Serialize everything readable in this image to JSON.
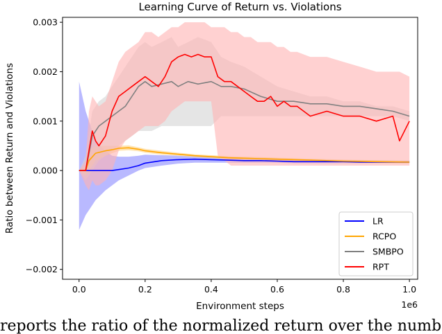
{
  "chart_data": {
    "type": "line",
    "title": "Learning Curve of Return vs. Violations",
    "xlabel": "Environment steps",
    "ylabel": "Ratio between Return and Violations",
    "x_offset_label": "1e6",
    "xlim": [
      -0.05,
      1.025
    ],
    "ylim": [
      -0.0022,
      0.0031
    ],
    "xticks": [
      0.0,
      0.2,
      0.4,
      0.6,
      0.8,
      1.0
    ],
    "xtick_labels": [
      "0.0",
      "0.2",
      "0.4",
      "0.6",
      "0.8",
      "1.0"
    ],
    "yticks": [
      -0.002,
      -0.001,
      0.0,
      0.001,
      0.002,
      0.003
    ],
    "ytick_labels": [
      "−0.002",
      "−0.001",
      "0.000",
      "0.001",
      "0.002",
      "0.003"
    ],
    "legend_position": "bottom-right",
    "series": [
      {
        "name": "LR",
        "color": "#0000ff",
        "band_color": "#8a8aff",
        "x": [
          0.0,
          0.02,
          0.05,
          0.08,
          0.1,
          0.12,
          0.15,
          0.18,
          0.2,
          0.25,
          0.3,
          0.35,
          0.4,
          0.45,
          0.5,
          0.55,
          0.6,
          0.65,
          0.7,
          0.75,
          0.8,
          0.85,
          0.9,
          0.95,
          1.0
        ],
        "y": [
          0.0,
          0.0,
          0.0,
          0.0,
          0.0,
          2e-05,
          5e-05,
          0.0001,
          0.00015,
          0.0002,
          0.00022,
          0.00023,
          0.00022,
          0.00021,
          0.0002,
          0.0002,
          0.00019,
          0.00018,
          0.00018,
          0.00018,
          0.00018,
          0.00017,
          0.00017,
          0.00017,
          0.00017
        ],
        "lower": [
          -0.0012,
          -0.0009,
          -0.0006,
          -0.0004,
          -0.0003,
          -0.0002,
          -0.0001,
          0.0,
          5e-05,
          0.0001,
          0.00014,
          0.00016,
          0.00016,
          0.00016,
          0.00016,
          0.00016,
          0.00016,
          0.00015,
          0.00015,
          0.00015,
          0.00015,
          0.00015,
          0.00015,
          0.00015,
          0.00015
        ],
        "upper": [
          0.0018,
          0.0012,
          0.0006,
          0.0004,
          0.0003,
          0.00028,
          0.00028,
          0.0003,
          0.00032,
          0.00031,
          0.0003,
          0.00029,
          0.00028,
          0.00027,
          0.00026,
          0.00025,
          0.00024,
          0.00023,
          0.00022,
          0.00021,
          0.00021,
          0.0002,
          0.0002,
          0.0002,
          0.0002
        ]
      },
      {
        "name": "RCPO",
        "color": "#ffa500",
        "band_color": "#ffd27f",
        "x": [
          0.0,
          0.02,
          0.03,
          0.05,
          0.08,
          0.1,
          0.12,
          0.15,
          0.18,
          0.2,
          0.25,
          0.3,
          0.35,
          0.4,
          0.45,
          0.5,
          0.55,
          0.6,
          0.7,
          0.8,
          0.9,
          1.0
        ],
        "y": [
          0.0,
          0.0,
          0.0002,
          0.00035,
          0.0004,
          0.00042,
          0.00045,
          0.00046,
          0.00043,
          0.0004,
          0.00036,
          0.00033,
          0.0003,
          0.00028,
          0.00026,
          0.00025,
          0.00024,
          0.00023,
          0.00021,
          0.00019,
          0.00018,
          0.00017
        ],
        "lower": [
          0.0,
          -0.0001,
          0.0,
          0.0002,
          0.0003,
          0.00035,
          0.0004,
          0.00041,
          0.00039,
          0.00036,
          0.00032,
          0.0003,
          0.00027,
          0.00025,
          0.00023,
          0.00022,
          0.00021,
          0.0002,
          0.00018,
          0.00016,
          0.00015,
          0.00014
        ],
        "upper": [
          0.0,
          0.0001,
          0.0004,
          0.0005,
          0.0005,
          0.0005,
          0.0005,
          0.00051,
          0.00047,
          0.00044,
          0.0004,
          0.00036,
          0.00033,
          0.00031,
          0.00029,
          0.00028,
          0.00027,
          0.00026,
          0.00024,
          0.00022,
          0.00021,
          0.0002
        ]
      },
      {
        "name": "SMBPO",
        "color": "#808080",
        "band_color": "#d3d3d3",
        "x": [
          0.0,
          0.02,
          0.04,
          0.06,
          0.08,
          0.1,
          0.12,
          0.14,
          0.16,
          0.18,
          0.2,
          0.22,
          0.25,
          0.28,
          0.3,
          0.33,
          0.36,
          0.4,
          0.43,
          0.46,
          0.5,
          0.55,
          0.6,
          0.65,
          0.7,
          0.75,
          0.8,
          0.85,
          0.9,
          0.95,
          1.0
        ],
        "y": [
          0.0,
          0.0,
          0.0007,
          0.0009,
          0.001,
          0.0011,
          0.0012,
          0.0013,
          0.0015,
          0.0017,
          0.0018,
          0.0017,
          0.00175,
          0.0018,
          0.0017,
          0.0018,
          0.00175,
          0.0018,
          0.0017,
          0.0017,
          0.00165,
          0.0015,
          0.0014,
          0.0014,
          0.00135,
          0.00135,
          0.0013,
          0.0013,
          0.00125,
          0.0012,
          0.0011
        ],
        "lower": [
          0.0,
          -0.0002,
          0.0,
          0.0002,
          0.0003,
          0.0004,
          0.0005,
          0.0006,
          0.0007,
          0.0008,
          0.0008,
          0.0008,
          0.0009,
          0.0009,
          0.0009,
          0.0009,
          0.0009,
          0.0009,
          0.0011,
          0.0011,
          0.0011,
          0.0011,
          0.0011,
          0.0011,
          0.0011,
          0.0011,
          0.0011,
          0.0011,
          0.0011,
          0.0011,
          0.001
        ],
        "upper": [
          0.0,
          0.0003,
          0.0012,
          0.0014,
          0.0015,
          0.0017,
          0.0019,
          0.0021,
          0.0023,
          0.0025,
          0.0026,
          0.0025,
          0.0026,
          0.0027,
          0.0025,
          0.0026,
          0.0027,
          0.0026,
          0.0023,
          0.0022,
          0.0021,
          0.0019,
          0.0017,
          0.0016,
          0.0015,
          0.0015,
          0.0014,
          0.0014,
          0.0013,
          0.0013,
          0.0012
        ]
      },
      {
        "name": "RPT",
        "color": "#ff0000",
        "band_color": "#ffb3b3",
        "x": [
          0.0,
          0.02,
          0.03,
          0.04,
          0.05,
          0.06,
          0.08,
          0.1,
          0.12,
          0.14,
          0.16,
          0.18,
          0.2,
          0.22,
          0.24,
          0.26,
          0.28,
          0.3,
          0.32,
          0.34,
          0.36,
          0.38,
          0.4,
          0.42,
          0.44,
          0.46,
          0.48,
          0.5,
          0.52,
          0.54,
          0.56,
          0.58,
          0.6,
          0.62,
          0.64,
          0.66,
          0.7,
          0.75,
          0.8,
          0.85,
          0.9,
          0.95,
          0.97,
          1.0
        ],
        "y": [
          0.0,
          0.0,
          0.0004,
          0.0008,
          0.0006,
          0.0005,
          0.0007,
          0.0012,
          0.0015,
          0.0016,
          0.0017,
          0.0018,
          0.0019,
          0.0018,
          0.0017,
          0.0019,
          0.0022,
          0.0023,
          0.00235,
          0.0023,
          0.00235,
          0.0023,
          0.0023,
          0.0019,
          0.0018,
          0.0018,
          0.0017,
          0.0016,
          0.0015,
          0.0014,
          0.0014,
          0.0015,
          0.0013,
          0.0014,
          0.0013,
          0.0013,
          0.0011,
          0.0012,
          0.0011,
          0.0011,
          0.001,
          0.0011,
          0.0006,
          0.001
        ],
        "lower": [
          0.0,
          -0.0003,
          -0.0004,
          -0.0002,
          -0.0003,
          -0.0003,
          -0.0002,
          0.0,
          0.0004,
          0.0006,
          0.0007,
          0.0008,
          0.0009,
          0.0009,
          0.0009,
          0.001,
          0.0012,
          0.0013,
          0.0014,
          0.0014,
          0.0014,
          0.0014,
          0.0014,
          0.0003,
          0.0002,
          0.0001,
          0.0001,
          0.0001,
          0.0001,
          0.0001,
          0.0001,
          0.0001,
          0.0001,
          0.0001,
          0.0001,
          0.0001,
          0.0001,
          0.0001,
          0.0001,
          0.0001,
          0.0001,
          0.0001,
          0.0001,
          0.0001
        ],
        "upper": [
          0.0,
          0.0002,
          0.0012,
          0.0015,
          0.0014,
          0.0013,
          0.0014,
          0.0018,
          0.0022,
          0.0024,
          0.0025,
          0.0026,
          0.0028,
          0.0028,
          0.0027,
          0.0028,
          0.0029,
          0.0029,
          0.003,
          0.003,
          0.003,
          0.003,
          0.0029,
          0.0029,
          0.0029,
          0.0028,
          0.0028,
          0.0027,
          0.0027,
          0.0026,
          0.0026,
          0.0026,
          0.0025,
          0.0025,
          0.0024,
          0.0024,
          0.0023,
          0.0023,
          0.0022,
          0.0021,
          0.002,
          0.002,
          0.002,
          0.0019
        ]
      }
    ]
  },
  "caption": {
    "text": "reports the ratio of the normalized return over the number"
  }
}
